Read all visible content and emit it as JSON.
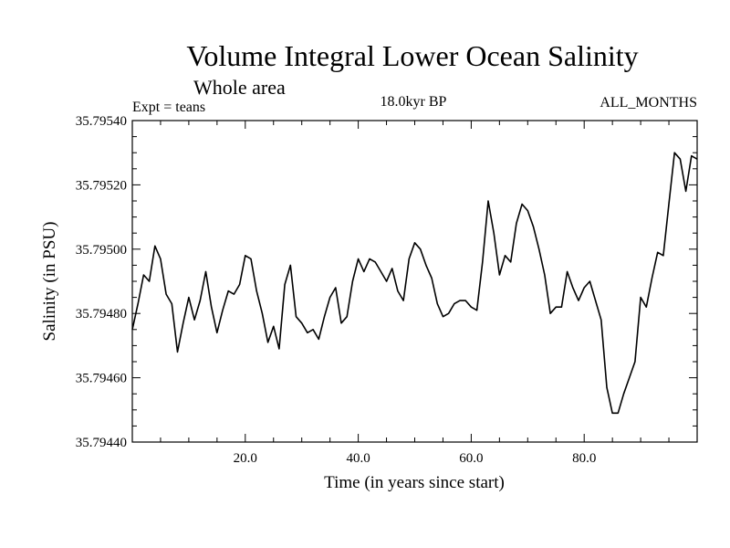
{
  "chart_data": {
    "type": "line",
    "title": "Volume Integral Lower Ocean Salinity",
    "subtitle": "Whole area",
    "experiment": "Expt = teans",
    "period": "18.0kyr BP",
    "months": "ALL_MONTHS",
    "xlabel": "Time (in years since start)",
    "ylabel": "Salinity (in PSU)",
    "xlim": [
      0,
      100
    ],
    "ylim": [
      35.7944,
      35.7954
    ],
    "xticks": [
      20,
      40,
      60,
      80
    ],
    "xtick_labels": [
      "20.0",
      "40.0",
      "60.0",
      "80.0"
    ],
    "yticks": [
      35.7944,
      35.7946,
      35.7948,
      35.795,
      35.7952,
      35.7954
    ],
    "ytick_labels": [
      "35.79440",
      "35.79460",
      "35.79480",
      "35.79500",
      "35.79520",
      "35.79540"
    ],
    "grid": false,
    "series": [
      {
        "name": "Salinity",
        "x": [
          0,
          1,
          2,
          3,
          4,
          5,
          6,
          7,
          8,
          9,
          10,
          11,
          12,
          13,
          14,
          15,
          16,
          17,
          18,
          19,
          20,
          21,
          22,
          23,
          24,
          25,
          26,
          27,
          28,
          29,
          30,
          31,
          32,
          33,
          34,
          35,
          36,
          37,
          38,
          39,
          40,
          41,
          42,
          43,
          44,
          45,
          46,
          47,
          48,
          49,
          50,
          51,
          52,
          53,
          54,
          55,
          56,
          57,
          58,
          59,
          60,
          61,
          62,
          63,
          64,
          65,
          66,
          67,
          68,
          69,
          70,
          71,
          72,
          73,
          74,
          75,
          76,
          77,
          78,
          79,
          80,
          81,
          82,
          83,
          84,
          85,
          86,
          87,
          88,
          89,
          90,
          91,
          92,
          93,
          94,
          95,
          96,
          97,
          98,
          99,
          100
        ],
        "values": [
          35.79475,
          35.79483,
          35.79492,
          35.7949,
          35.79501,
          35.79497,
          35.79486,
          35.79483,
          35.79468,
          35.79477,
          35.79485,
          35.79478,
          35.79484,
          35.79493,
          35.79482,
          35.79474,
          35.79481,
          35.79487,
          35.79486,
          35.79489,
          35.79498,
          35.79497,
          35.79487,
          35.7948,
          35.79471,
          35.79476,
          35.79469,
          35.79489,
          35.79495,
          35.79479,
          35.79477,
          35.79474,
          35.79475,
          35.79472,
          35.79479,
          35.79485,
          35.79488,
          35.79477,
          35.79479,
          35.7949,
          35.79497,
          35.79493,
          35.79497,
          35.79496,
          35.79493,
          35.7949,
          35.79494,
          35.79487,
          35.79484,
          35.79497,
          35.79502,
          35.795,
          35.79495,
          35.79491,
          35.79483,
          35.79479,
          35.7948,
          35.79483,
          35.79484,
          35.79484,
          35.79482,
          35.79481,
          35.79496,
          35.79515,
          35.79505,
          35.79492,
          35.79498,
          35.79496,
          35.79508,
          35.79514,
          35.79512,
          35.79507,
          35.795,
          35.79492,
          35.7948,
          35.79482,
          35.79482,
          35.79493,
          35.79488,
          35.79484,
          35.79488,
          35.7949,
          35.79484,
          35.79478,
          35.79457,
          35.79449,
          35.79449,
          35.79455,
          35.7946,
          35.79465,
          35.79485,
          35.79482,
          35.79491,
          35.79499,
          35.79498,
          35.79514,
          35.7953,
          35.79528,
          35.79518,
          35.79529,
          35.79528
        ]
      }
    ]
  }
}
